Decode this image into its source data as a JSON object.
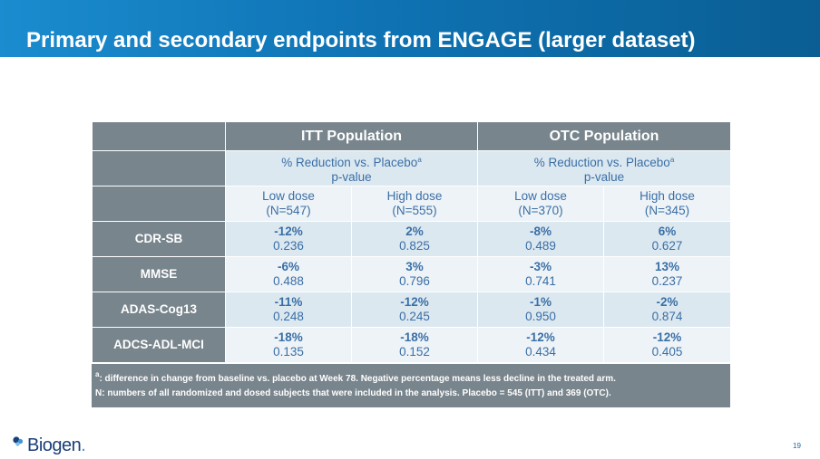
{
  "slide": {
    "title": "Primary and secondary endpoints from ENGAGE (larger dataset)",
    "page_number": "19",
    "logo_text": "Biogen",
    "logo_trademark": "."
  },
  "table": {
    "populations": [
      "ITT Population",
      "OTC Population"
    ],
    "measure_label": "% Reduction vs. Placebo",
    "measure_sup": "a",
    "measure_sub": "p-value",
    "doses": [
      {
        "label": "Low dose",
        "n": "(N=547)"
      },
      {
        "label": "High dose",
        "n": "(N=555)"
      },
      {
        "label": "Low dose",
        "n": "(N=370)"
      },
      {
        "label": "High dose",
        "n": "(N=345)"
      }
    ],
    "rows": [
      {
        "label": "CDR-SB",
        "cells": [
          {
            "pct": "-12%",
            "p": "0.236"
          },
          {
            "pct": "2%",
            "p": "0.825"
          },
          {
            "pct": "-8%",
            "p": "0.489"
          },
          {
            "pct": "6%",
            "p": "0.627"
          }
        ]
      },
      {
        "label": "MMSE",
        "cells": [
          {
            "pct": "-6%",
            "p": "0.488"
          },
          {
            "pct": "3%",
            "p": "0.796"
          },
          {
            "pct": "-3%",
            "p": "0.741"
          },
          {
            "pct": "13%",
            "p": "0.237"
          }
        ]
      },
      {
        "label": "ADAS-Cog13",
        "cells": [
          {
            "pct": "-11%",
            "p": "0.248"
          },
          {
            "pct": "-12%",
            "p": "0.245"
          },
          {
            "pct": "-1%",
            "p": "0.950"
          },
          {
            "pct": "-2%",
            "p": "0.874"
          }
        ]
      },
      {
        "label": "ADCS-ADL-MCI",
        "cells": [
          {
            "pct": "-18%",
            "p": "0.135"
          },
          {
            "pct": "-18%",
            "p": "0.152"
          },
          {
            "pct": "-12%",
            "p": "0.434"
          },
          {
            "pct": "-12%",
            "p": "0.405"
          }
        ]
      }
    ]
  },
  "footnotes": {
    "a_marker": "a",
    "a_text": ": difference in change from baseline vs. placebo at Week 78. Negative percentage means less decline in the treated arm.",
    "n_text": "N: numbers of all randomized and dosed subjects that were included in the analysis. Placebo = 545 (ITT) and 369 (OTC)."
  },
  "colors": {
    "title_bar": "#0f73b4",
    "header_gray": "#78858c",
    "cell_light_blue": "#dce8f0",
    "cell_pale_blue": "#edf3f7",
    "data_text_blue": "#3a6fa6",
    "logo_navy": "#1b3f7a"
  }
}
